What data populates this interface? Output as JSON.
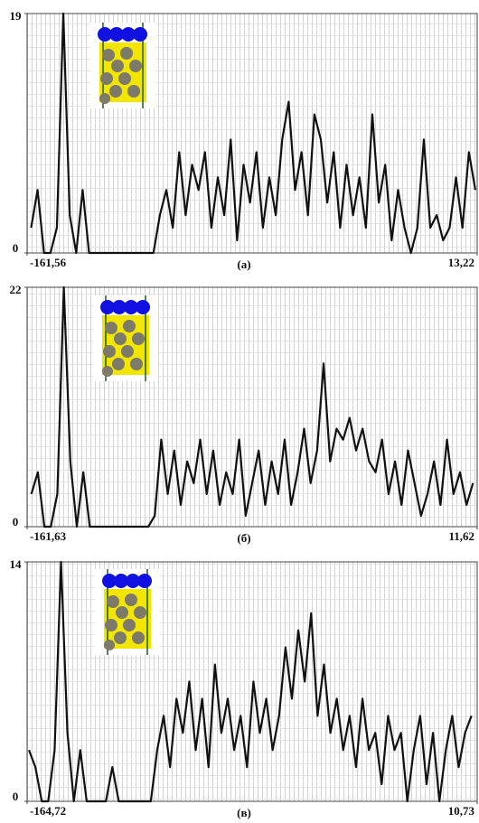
{
  "chart_data": [
    {
      "type": "line",
      "caption": "(а)",
      "x": [
        -160,
        -157.5,
        -155,
        -152.5,
        -150,
        -147.5,
        -145,
        -142.5,
        -140,
        -137.5,
        -135,
        -132.5,
        -130,
        -127.5,
        -125,
        -122.5,
        -120,
        -117.5,
        -115,
        -112.5,
        -110,
        -107.5,
        -105,
        -102.5,
        -100,
        -97.5,
        -95,
        -92.5,
        -90,
        -87.5,
        -85,
        -82.5,
        -80,
        -77.5,
        -75,
        -72.5,
        -70,
        -67.5,
        -65,
        -62.5,
        -60,
        -57.5,
        -55,
        -52.5,
        -50,
        -47.5,
        -45,
        -42.5,
        -40,
        -37.5,
        -35,
        -32.5,
        -30,
        -27.5,
        -25,
        -22.5,
        -20,
        -17.5,
        -15,
        -12.5,
        -10,
        -7.5,
        -5,
        -2.5,
        0,
        2.5,
        5,
        7.5,
        10,
        12.5
      ],
      "series": [
        {
          "color": "#111111",
          "values": [
            2,
            5,
            0,
            0,
            2,
            19,
            3,
            0,
            5,
            0,
            0,
            0,
            0,
            0,
            0,
            0,
            0,
            0,
            0,
            0,
            3,
            5,
            2,
            8,
            3,
            7,
            5,
            8,
            2,
            6,
            3,
            9,
            1,
            7,
            4,
            8,
            2,
            6,
            3,
            9,
            12,
            5,
            8,
            3,
            11,
            9,
            4,
            8,
            2,
            7,
            3,
            6,
            2,
            11,
            4,
            7,
            1,
            5,
            2,
            0,
            2,
            9,
            2,
            3,
            1,
            2,
            6,
            2,
            8,
            5
          ]
        }
      ],
      "xlim": [
        -161.56,
        13.22
      ],
      "xticks": [
        {
          "value": -161.56,
          "label": "-161,56"
        },
        {
          "value": 13.22,
          "label": "13,22"
        }
      ],
      "ylim": [
        0,
        19
      ],
      "yticks": [
        0,
        19
      ]
    },
    {
      "type": "line",
      "caption": "(б)",
      "x": [
        -160,
        -157.5,
        -155,
        -152.5,
        -150,
        -147.5,
        -145,
        -142.5,
        -140,
        -137.5,
        -135,
        -132.5,
        -130,
        -127.5,
        -125,
        -122.5,
        -120,
        -117.5,
        -115,
        -112.5,
        -110,
        -107.5,
        -105,
        -102.5,
        -100,
        -97.5,
        -95,
        -92.5,
        -90,
        -87.5,
        -85,
        -82.5,
        -80,
        -77.5,
        -75,
        -72.5,
        -70,
        -67.5,
        -65,
        -62.5,
        -60,
        -57.5,
        -55,
        -52.5,
        -50,
        -47.5,
        -45,
        -42.5,
        -40,
        -37.5,
        -35,
        -32.5,
        -30,
        -27.5,
        -25,
        -22.5,
        -20,
        -17.5,
        -15,
        -12.5,
        -10,
        -7.5,
        -5,
        -2.5,
        0,
        2.5,
        5,
        7.5,
        10
      ],
      "series": [
        {
          "color": "#111111",
          "values": [
            3,
            5,
            0,
            0,
            3,
            22,
            6,
            0,
            5,
            0,
            0,
            0,
            0,
            0,
            0,
            0,
            0,
            0,
            0,
            1,
            8,
            3,
            7,
            2,
            6,
            4,
            8,
            3,
            7,
            2,
            5,
            3,
            8,
            1,
            4,
            7,
            2,
            6,
            3,
            8,
            2,
            5,
            9,
            4,
            7,
            15,
            6,
            9,
            8,
            10,
            7,
            9,
            6,
            5,
            8,
            3,
            6,
            2,
            7,
            4,
            1,
            3,
            6,
            2,
            8,
            3,
            5,
            2,
            4
          ]
        }
      ],
      "xlim": [
        -161.63,
        11.62
      ],
      "xticks": [
        {
          "value": -161.63,
          "label": "-161,63"
        },
        {
          "value": 11.62,
          "label": "11,62"
        }
      ],
      "ylim": [
        0,
        22
      ],
      "yticks": [
        0,
        22
      ]
    },
    {
      "type": "line",
      "caption": "(в)",
      "x": [
        -164,
        -161.5,
        -159,
        -156.5,
        -154,
        -151.5,
        -149,
        -146.5,
        -144,
        -141.5,
        -139,
        -136.5,
        -134,
        -131.5,
        -129,
        -126.5,
        -124,
        -121.5,
        -119,
        -116.5,
        -114,
        -111.5,
        -109,
        -106.5,
        -104,
        -101.5,
        -99,
        -96.5,
        -94,
        -91.5,
        -89,
        -86.5,
        -84,
        -81.5,
        -79,
        -76.5,
        -74,
        -71.5,
        -69,
        -66.5,
        -64,
        -61.5,
        -59,
        -56.5,
        -54,
        -51.5,
        -49,
        -46.5,
        -44,
        -41.5,
        -39,
        -36.5,
        -34,
        -31.5,
        -29,
        -26.5,
        -24,
        -21.5,
        -19,
        -16.5,
        -14,
        -11.5,
        -9,
        -6.5,
        -4,
        -1.5,
        1,
        3.5,
        6,
        8.5
      ],
      "series": [
        {
          "color": "#111111",
          "values": [
            3,
            2,
            0,
            0,
            3,
            14,
            4,
            0,
            3,
            0,
            0,
            0,
            0,
            2,
            0,
            0,
            0,
            0,
            0,
            0,
            3,
            5,
            2,
            6,
            4,
            7,
            3,
            6,
            2,
            8,
            4,
            6,
            3,
            5,
            2,
            7,
            4,
            6,
            3,
            5,
            9,
            6,
            10,
            7,
            11,
            5,
            8,
            4,
            6,
            3,
            5,
            2,
            6,
            3,
            4,
            1,
            5,
            3,
            4,
            0,
            3,
            5,
            1,
            4,
            0,
            3,
            5,
            2,
            4,
            5
          ]
        }
      ],
      "xlim": [
        -164.72,
        10.73
      ],
      "xticks": [
        {
          "value": -164.72,
          "label": "-164,72"
        },
        {
          "value": 10.73,
          "label": "10,73"
        }
      ],
      "ylim": [
        0,
        14
      ],
      "yticks": [
        0,
        14
      ]
    }
  ]
}
